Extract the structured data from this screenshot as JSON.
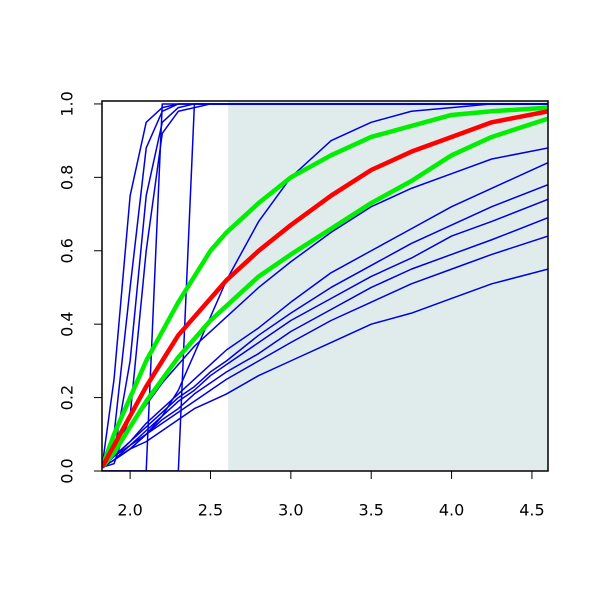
{
  "chart_data": {
    "type": "line",
    "x": [
      1.825,
      1.9,
      2.0,
      2.1,
      2.2,
      2.3,
      2.4,
      2.5,
      2.6,
      2.8,
      3.0,
      3.25,
      3.5,
      3.75,
      4.0,
      4.25,
      4.6
    ],
    "xlim": [
      1.825,
      4.6
    ],
    "ylim": [
      0,
      1.008
    ],
    "xticks": [
      {
        "value": 2,
        "label": "2.0"
      },
      2.5,
      {
        "value": 3,
        "label": "3.0"
      },
      3.5,
      {
        "value": 4,
        "label": "4.0"
      },
      4.5
    ],
    "yticks": [
      {
        "value": 0,
        "label": "0.0"
      },
      0.2,
      0.4,
      0.6,
      0.8,
      {
        "value": 1,
        "label": "1.0"
      }
    ],
    "highlight": {
      "xrange": [
        2.61,
        4.6
      ],
      "color": "#e0ecec"
    },
    "series": [
      {
        "color": "#0000dd",
        "width": 1.5,
        "values": [
          0.01,
          0.25,
          0.75,
          0.95,
          0.99,
          1,
          1,
          1,
          1,
          1,
          1,
          1,
          1,
          1,
          1,
          1,
          1
        ]
      },
      {
        "color": "#0000dd",
        "width": 1.5,
        "values": [
          0.01,
          0.1,
          0.5,
          0.88,
          0.98,
          1,
          1,
          1,
          1,
          1,
          1,
          1,
          1,
          1,
          1,
          1,
          1
        ]
      },
      {
        "color": "#0000dd",
        "width": 1.5,
        "values": [
          0.01,
          0.05,
          0.3,
          0.75,
          0.95,
          0.99,
          1,
          1,
          1,
          1,
          1,
          1,
          1,
          1,
          1,
          1,
          1
        ]
      },
      {
        "color": "#0000dd",
        "width": 1.5,
        "values": [
          0.01,
          0.02,
          0.15,
          0.6,
          0.92,
          0.98,
          0.99,
          1,
          1,
          1,
          1,
          1,
          1,
          1,
          1,
          1,
          1
        ]
      },
      {
        "color": "#0000dd",
        "width": 1.5,
        "values": [
          0,
          0,
          0,
          0,
          1,
          1,
          1,
          1,
          1,
          1,
          1,
          1,
          1,
          1,
          1,
          1,
          1
        ]
      },
      {
        "color": "#0000dd",
        "width": 1.5,
        "values": [
          0,
          0,
          0,
          0,
          0,
          0,
          1,
          1,
          1,
          1,
          1,
          1,
          1,
          1,
          1,
          1,
          1
        ]
      },
      {
        "color": "#0000dd",
        "width": 1.5,
        "values": [
          0.01,
          0.03,
          0.06,
          0.1,
          0.15,
          0.22,
          0.32,
          0.42,
          0.52,
          0.68,
          0.8,
          0.9,
          0.95,
          0.98,
          0.99,
          1,
          1
        ]
      },
      {
        "color": "#0000dd",
        "width": 1.5,
        "values": [
          0.01,
          0.03,
          0.06,
          0.08,
          0.11,
          0.14,
          0.17,
          0.19,
          0.21,
          0.26,
          0.3,
          0.35,
          0.4,
          0.43,
          0.47,
          0.51,
          0.55
        ]
      },
      {
        "color": "#0000dd",
        "width": 1.5,
        "values": [
          0.01,
          0.03,
          0.06,
          0.1,
          0.13,
          0.16,
          0.19,
          0.22,
          0.25,
          0.3,
          0.35,
          0.41,
          0.46,
          0.51,
          0.55,
          0.59,
          0.64
        ]
      },
      {
        "color": "#0000dd",
        "width": 1.5,
        "values": [
          0.01,
          0.03,
          0.07,
          0.1,
          0.14,
          0.17,
          0.21,
          0.24,
          0.27,
          0.32,
          0.38,
          0.44,
          0.5,
          0.55,
          0.59,
          0.63,
          0.69
        ]
      },
      {
        "color": "#0000dd",
        "width": 1.5,
        "values": [
          0.01,
          0.04,
          0.07,
          0.11,
          0.15,
          0.19,
          0.22,
          0.26,
          0.29,
          0.35,
          0.41,
          0.47,
          0.53,
          0.58,
          0.64,
          0.68,
          0.74
        ]
      },
      {
        "color": "#0000dd",
        "width": 1.5,
        "values": [
          0.01,
          0.04,
          0.08,
          0.12,
          0.16,
          0.2,
          0.23,
          0.27,
          0.3,
          0.37,
          0.43,
          0.5,
          0.56,
          0.62,
          0.67,
          0.72,
          0.78
        ]
      },
      {
        "color": "#0000dd",
        "width": 1.5,
        "values": [
          0.01,
          0.04,
          0.08,
          0.13,
          0.17,
          0.21,
          0.25,
          0.29,
          0.33,
          0.39,
          0.46,
          0.54,
          0.6,
          0.66,
          0.72,
          0.77,
          0.84
        ]
      },
      {
        "color": "#0000dd",
        "width": 1.5,
        "values": [
          0.01,
          0.06,
          0.12,
          0.18,
          0.24,
          0.29,
          0.34,
          0.38,
          0.42,
          0.5,
          0.57,
          0.65,
          0.72,
          0.77,
          0.81,
          0.85,
          0.88
        ]
      },
      {
        "color": "#00ee00",
        "width": 4.5,
        "values": [
          0.01,
          0.1,
          0.2,
          0.3,
          0.38,
          0.46,
          0.53,
          0.6,
          0.65,
          0.73,
          0.8,
          0.86,
          0.91,
          0.94,
          0.97,
          0.98,
          0.99
        ]
      },
      {
        "color": "#00ee00",
        "width": 4.5,
        "values": [
          0.01,
          0.05,
          0.12,
          0.19,
          0.25,
          0.31,
          0.36,
          0.41,
          0.45,
          0.53,
          0.59,
          0.66,
          0.73,
          0.79,
          0.86,
          0.91,
          0.96
        ]
      },
      {
        "color": "#ff0000",
        "width": 4.5,
        "values": [
          0.01,
          0.07,
          0.15,
          0.23,
          0.3,
          0.37,
          0.42,
          0.47,
          0.52,
          0.6,
          0.67,
          0.75,
          0.82,
          0.87,
          0.91,
          0.95,
          0.98
        ]
      }
    ]
  }
}
